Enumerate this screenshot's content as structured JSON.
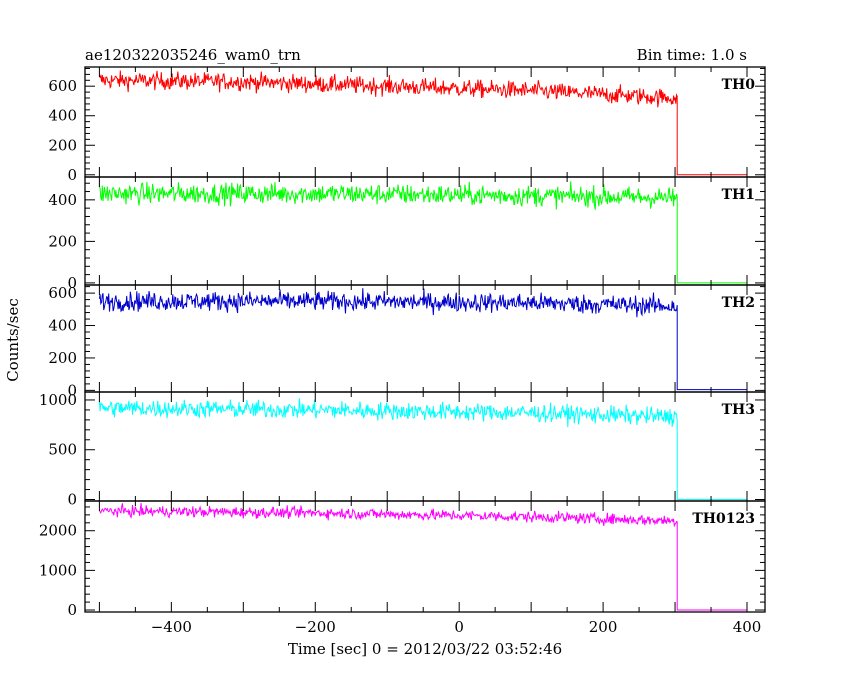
{
  "header": {
    "title": "ae120322035246_wam0_trn",
    "bin_time": "Bin time: 1.0 s"
  },
  "chart_data": {
    "type": "line",
    "title": "ae120322035246_wam0_trn",
    "xlabel": "Time [sec] 0 = 2012/03/22 03:52:46",
    "ylabel": "Counts/sec",
    "xlim": [
      -520,
      425
    ],
    "x_ticks": [
      -400,
      -200,
      0,
      200,
      400
    ],
    "step_time": 303,
    "x_start": -500,
    "x_end": 400,
    "grid": false,
    "panels": [
      {
        "name": "TH0",
        "color": "#ff0000",
        "ylim": [
          -15,
          730
        ],
        "y_ticks": [
          0,
          200,
          400,
          600
        ],
        "level_start": 640,
        "level_end": 520,
        "noise": 30,
        "post": 0,
        "trend": [
          [
            -500,
            640
          ],
          [
            -300,
            630
          ],
          [
            -100,
            600
          ],
          [
            100,
            570
          ],
          [
            300,
            520
          ]
        ]
      },
      {
        "name": "TH1",
        "color": "#00ff00",
        "ylim": [
          -10,
          510
        ],
        "y_ticks": [
          0,
          200,
          400
        ],
        "level_start": 430,
        "level_end": 410,
        "noise": 25,
        "post": 0,
        "trend": [
          [
            -500,
            430
          ],
          [
            -200,
            430
          ],
          [
            100,
            420
          ],
          [
            300,
            410
          ]
        ]
      },
      {
        "name": "TH2",
        "color": "#0000cc",
        "ylim": [
          -10,
          650
        ],
        "y_ticks": [
          0,
          200,
          400,
          600
        ],
        "level_start": 550,
        "level_end": 520,
        "noise": 30,
        "post": 5,
        "trend": [
          [
            -500,
            550
          ],
          [
            -200,
            550
          ],
          [
            100,
            540
          ],
          [
            300,
            520
          ]
        ]
      },
      {
        "name": "TH3",
        "color": "#00ffff",
        "ylim": [
          -15,
          1080
        ],
        "y_ticks": [
          0,
          500,
          1000
        ],
        "level_start": 920,
        "level_end": 830,
        "noise": 45,
        "post": 0,
        "trend": [
          [
            -500,
            920
          ],
          [
            -200,
            900
          ],
          [
            100,
            870
          ],
          [
            300,
            830
          ]
        ]
      },
      {
        "name": "TH0123",
        "color": "#ff00ff",
        "ylim": [
          -50,
          2750
        ],
        "y_ticks": [
          0,
          1000,
          2000
        ],
        "level_start": 2500,
        "level_end": 2250,
        "noise": 70,
        "post": 0,
        "trend": [
          [
            -500,
            2500
          ],
          [
            -200,
            2450
          ],
          [
            100,
            2350
          ],
          [
            300,
            2250
          ]
        ]
      }
    ]
  }
}
